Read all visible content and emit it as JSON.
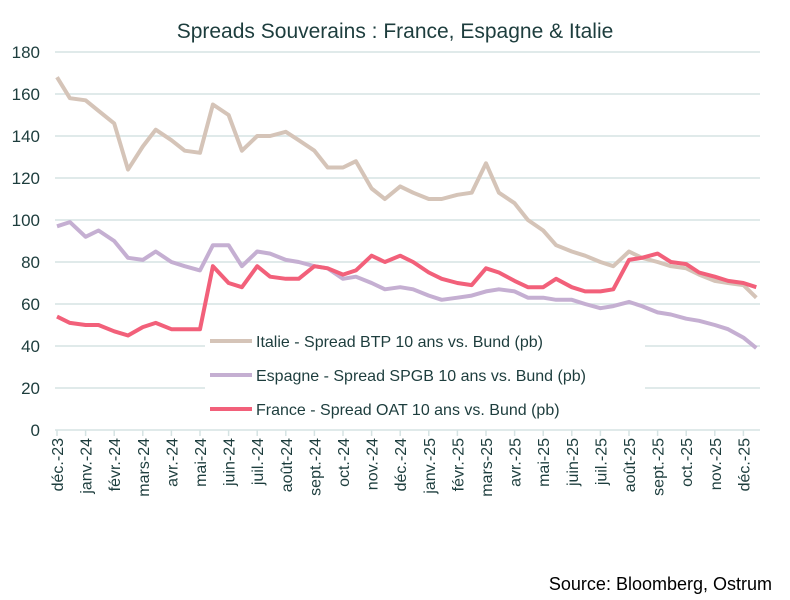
{
  "chart_data": {
    "type": "line",
    "title": "Spreads Souverains : France, Espagne & Italie",
    "source": "Source: Bloomberg, Ostrum",
    "xlabel": "",
    "ylabel": "",
    "ylim": [
      0,
      180
    ],
    "yticks": [
      0,
      20,
      40,
      60,
      80,
      100,
      120,
      140,
      160,
      180
    ],
    "grid": true,
    "legend_position": "bottom-center",
    "xtick_labels": [
      "déc.-23",
      "janv.-24",
      "févr.-24",
      "mars-24",
      "avr.-24",
      "mai-24",
      "juin-24",
      "juil.-24",
      "août-24",
      "sept.-24",
      "oct.-24",
      "nov.-24",
      "déc.-24",
      "janv.-25",
      "févr.-25",
      "mars-25",
      "avr.-25",
      "mai-25",
      "juin-25",
      "juil.-25",
      "août-25",
      "sept.-25",
      "oct.-25",
      "nov.-25",
      "déc.-25"
    ],
    "x": [
      "2023-12-01",
      "2023-12-15",
      "2024-01-01",
      "2024-01-15",
      "2024-02-01",
      "2024-02-15",
      "2024-03-01",
      "2024-03-15",
      "2024-04-01",
      "2024-04-15",
      "2024-05-01",
      "2024-05-15",
      "2024-06-01",
      "2024-06-15",
      "2024-07-01",
      "2024-07-15",
      "2024-08-01",
      "2024-08-15",
      "2024-09-01",
      "2024-09-15",
      "2024-10-01",
      "2024-10-15",
      "2024-11-01",
      "2024-11-15",
      "2024-12-01",
      "2024-12-15",
      "2025-01-01",
      "2025-01-15",
      "2025-02-01",
      "2025-02-15",
      "2025-03-01",
      "2025-03-15",
      "2025-04-01",
      "2025-04-15",
      "2025-05-01",
      "2025-05-15",
      "2025-06-01",
      "2025-06-15",
      "2025-07-01",
      "2025-07-15",
      "2025-08-01",
      "2025-08-15",
      "2025-09-01",
      "2025-09-15",
      "2025-10-01",
      "2025-10-15",
      "2025-11-01",
      "2025-11-15",
      "2025-12-01",
      "2025-12-15"
    ],
    "series": [
      {
        "name": "Italie - Spread BTP 10 ans vs. Bund   (pb)",
        "color": "#d5c4b8",
        "values": [
          168,
          158,
          157,
          152,
          146,
          124,
          135,
          143,
          138,
          133,
          132,
          155,
          150,
          133,
          140,
          140,
          142,
          138,
          133,
          125,
          125,
          128,
          115,
          110,
          116,
          113,
          110,
          110,
          112,
          113,
          127,
          113,
          108,
          100,
          95,
          88,
          85,
          83,
          80,
          78,
          85,
          82,
          80,
          78,
          77,
          74,
          71,
          70,
          69,
          63
        ]
      },
      {
        "name": "Espagne - Spread SPGB 10 ans vs. Bund   (pb)",
        "color": "#c5afd2",
        "values": [
          97,
          99,
          92,
          95,
          90,
          82,
          81,
          85,
          80,
          78,
          76,
          88,
          88,
          78,
          85,
          84,
          81,
          80,
          78,
          77,
          72,
          73,
          70,
          67,
          68,
          67,
          64,
          62,
          63,
          64,
          66,
          67,
          66,
          63,
          63,
          62,
          62,
          60,
          58,
          59,
          61,
          59,
          56,
          55,
          53,
          52,
          50,
          48,
          44,
          39
        ]
      },
      {
        "name": "France - Spread OAT 10 ans vs. Bund   (pb)",
        "color": "#f2607a",
        "values": [
          54,
          51,
          50,
          50,
          47,
          45,
          49,
          51,
          48,
          48,
          48,
          78,
          70,
          68,
          78,
          73,
          72,
          72,
          78,
          77,
          74,
          76,
          83,
          80,
          83,
          80,
          75,
          72,
          70,
          69,
          77,
          75,
          71,
          68,
          68,
          72,
          68,
          66,
          66,
          67,
          81,
          82,
          84,
          80,
          79,
          75,
          73,
          71,
          70,
          68
        ]
      }
    ]
  },
  "colors": {
    "grid": "#d5e3e3",
    "text": "#1d3d3d"
  }
}
